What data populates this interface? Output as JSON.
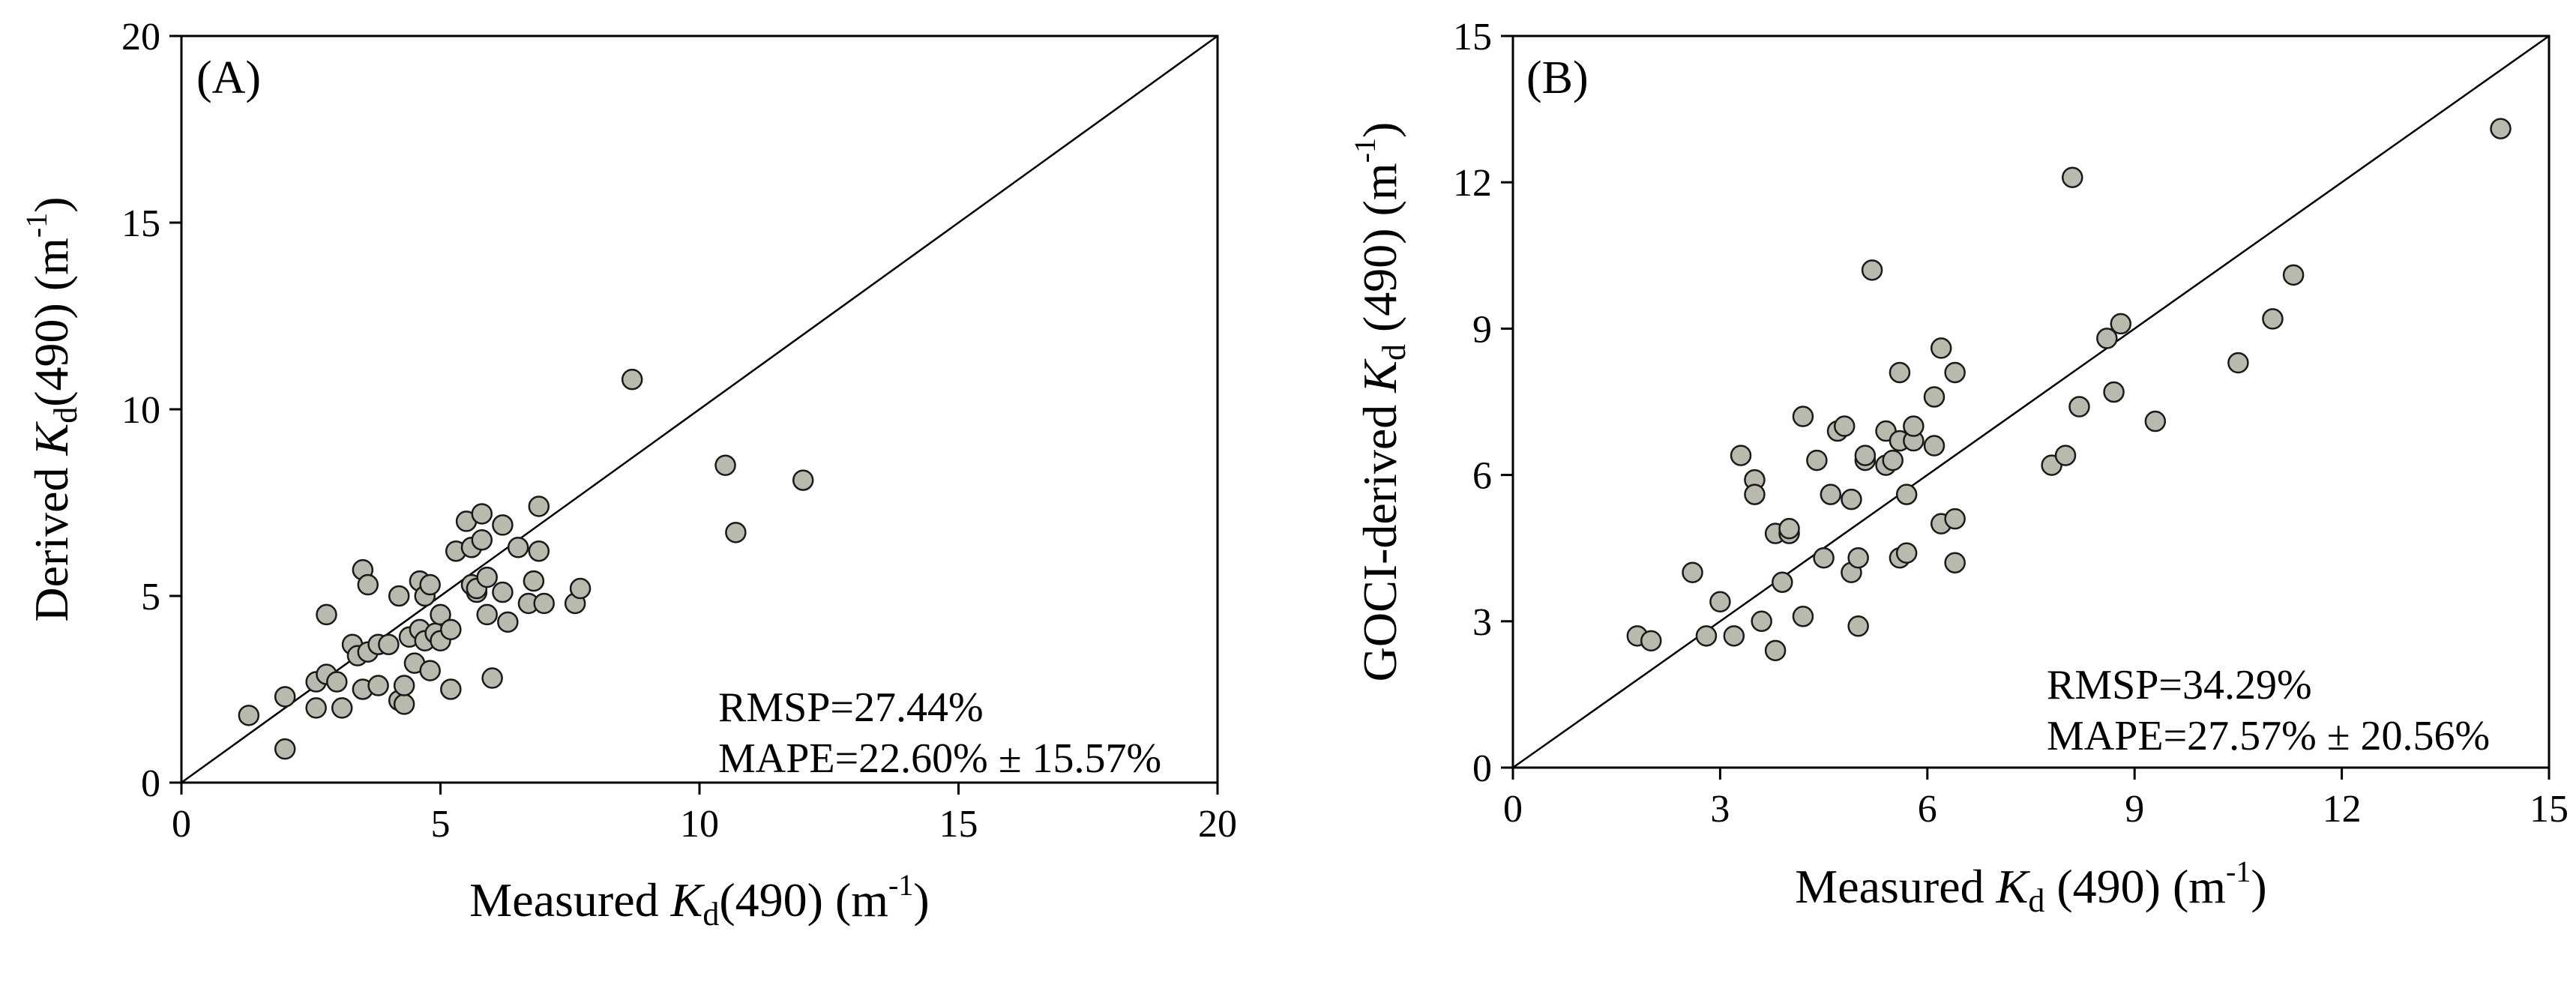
{
  "chart_data": [
    {
      "type": "scatter",
      "panel_label": "(A)",
      "xlabel": {
        "prefix": "Measured ",
        "var": "K",
        "sub": "d",
        "suffix": "(490) (m",
        "sup": "-1",
        "close": ")"
      },
      "ylabel": {
        "prefix": "Derived ",
        "var": "K",
        "sub": "d",
        "suffix": "(490) (m",
        "sup": "-1",
        "close": ")"
      },
      "xlim": [
        0,
        20
      ],
      "ylim": [
        0,
        20
      ],
      "xticks": [
        "0",
        "5",
        "10",
        "15",
        "20"
      ],
      "yticks": [
        "0",
        "5",
        "10",
        "15",
        "20"
      ],
      "tick_values": [
        0,
        5,
        10,
        15,
        20
      ],
      "reference_line": "1:1",
      "annotations": [
        "RMSP=27.44%",
        "MAPE=22.60% ± 15.57%"
      ],
      "points": [
        [
          1.3,
          1.8
        ],
        [
          2.0,
          0.9
        ],
        [
          2.0,
          2.3
        ],
        [
          2.6,
          2.7
        ],
        [
          2.6,
          2.0
        ],
        [
          2.8,
          2.9
        ],
        [
          2.8,
          4.5
        ],
        [
          3.0,
          2.7
        ],
        [
          3.1,
          2.0
        ],
        [
          3.3,
          3.7
        ],
        [
          3.4,
          3.4
        ],
        [
          3.5,
          2.5
        ],
        [
          3.5,
          5.7
        ],
        [
          3.6,
          5.3
        ],
        [
          3.6,
          3.5
        ],
        [
          3.8,
          3.7
        ],
        [
          3.8,
          2.6
        ],
        [
          4.0,
          3.7
        ],
        [
          4.2,
          2.2
        ],
        [
          4.2,
          5.0
        ],
        [
          4.3,
          2.1
        ],
        [
          4.3,
          2.6
        ],
        [
          4.4,
          3.9
        ],
        [
          4.5,
          3.2
        ],
        [
          4.6,
          4.1
        ],
        [
          4.6,
          5.4
        ],
        [
          4.7,
          5.0
        ],
        [
          4.7,
          3.8
        ],
        [
          4.8,
          5.3
        ],
        [
          4.8,
          3.0
        ],
        [
          4.9,
          4.0
        ],
        [
          5.0,
          4.5
        ],
        [
          5.0,
          3.8
        ],
        [
          5.2,
          4.1
        ],
        [
          5.2,
          2.5
        ],
        [
          5.3,
          6.2
        ],
        [
          5.5,
          7.0
        ],
        [
          5.6,
          6.3
        ],
        [
          5.6,
          5.3
        ],
        [
          5.7,
          5.1
        ],
        [
          5.7,
          5.2
        ],
        [
          5.8,
          7.2
        ],
        [
          5.8,
          6.5
        ],
        [
          5.9,
          4.5
        ],
        [
          5.9,
          5.5
        ],
        [
          6.0,
          2.8
        ],
        [
          6.2,
          6.9
        ],
        [
          6.2,
          5.1
        ],
        [
          6.3,
          4.3
        ],
        [
          6.5,
          6.3
        ],
        [
          6.7,
          4.8
        ],
        [
          6.8,
          5.4
        ],
        [
          6.9,
          7.4
        ],
        [
          6.9,
          6.2
        ],
        [
          7.0,
          4.8
        ],
        [
          7.6,
          4.8
        ],
        [
          7.7,
          5.2
        ],
        [
          8.7,
          10.8
        ],
        [
          10.5,
          8.5
        ],
        [
          10.7,
          6.7
        ],
        [
          12.0,
          8.1
        ]
      ]
    },
    {
      "type": "scatter",
      "panel_label": "(B)",
      "xlabel": {
        "prefix": "Measured ",
        "var": "K",
        "sub": "d",
        "suffix": " (490) (m",
        "sup": "-1",
        "close": ")"
      },
      "ylabel": {
        "prefix": "GOCI-derived ",
        "var": "K",
        "sub": "d",
        "suffix": " (490) (m",
        "sup": "-1",
        "close": ")"
      },
      "xlim": [
        0,
        15
      ],
      "ylim": [
        0,
        15
      ],
      "xticks": [
        "0",
        "3",
        "6",
        "9",
        "12",
        "15"
      ],
      "yticks": [
        "0",
        "3",
        "6",
        "9",
        "12",
        "15"
      ],
      "tick_values": [
        0,
        3,
        6,
        9,
        12,
        15
      ],
      "reference_line": "1:1",
      "annotations": [
        "RMSP=34.29%",
        "MAPE=27.57% ± 20.56%"
      ],
      "points": [
        [
          1.8,
          2.7
        ],
        [
          2.0,
          2.6
        ],
        [
          2.6,
          4.0
        ],
        [
          2.8,
          2.7
        ],
        [
          3.0,
          3.4
        ],
        [
          3.2,
          2.7
        ],
        [
          3.3,
          6.4
        ],
        [
          3.5,
          5.9
        ],
        [
          3.5,
          5.6
        ],
        [
          3.6,
          3.0
        ],
        [
          3.8,
          2.4
        ],
        [
          3.8,
          4.8
        ],
        [
          3.9,
          3.8
        ],
        [
          4.0,
          4.8
        ],
        [
          4.0,
          4.9
        ],
        [
          4.2,
          7.2
        ],
        [
          4.2,
          3.1
        ],
        [
          4.4,
          6.3
        ],
        [
          4.5,
          4.3
        ],
        [
          4.6,
          5.6
        ],
        [
          4.7,
          6.9
        ],
        [
          4.8,
          7.0
        ],
        [
          4.9,
          5.5
        ],
        [
          4.9,
          4.0
        ],
        [
          5.0,
          2.9
        ],
        [
          5.0,
          4.3
        ],
        [
          5.1,
          6.3
        ],
        [
          5.1,
          6.4
        ],
        [
          5.2,
          10.2
        ],
        [
          5.4,
          6.9
        ],
        [
          5.4,
          6.2
        ],
        [
          5.5,
          6.3
        ],
        [
          5.6,
          8.1
        ],
        [
          5.6,
          6.7
        ],
        [
          5.6,
          4.3
        ],
        [
          5.7,
          5.6
        ],
        [
          5.7,
          4.4
        ],
        [
          5.8,
          6.7
        ],
        [
          5.8,
          7.0
        ],
        [
          6.1,
          7.6
        ],
        [
          6.1,
          6.6
        ],
        [
          6.2,
          5.0
        ],
        [
          6.2,
          8.6
        ],
        [
          6.4,
          8.1
        ],
        [
          6.4,
          5.1
        ],
        [
          6.4,
          4.2
        ],
        [
          7.8,
          6.2
        ],
        [
          8.0,
          6.4
        ],
        [
          8.1,
          12.1
        ],
        [
          8.2,
          7.4
        ],
        [
          8.6,
          8.8
        ],
        [
          8.7,
          7.7
        ],
        [
          8.8,
          9.1
        ],
        [
          9.3,
          7.1
        ],
        [
          10.5,
          8.3
        ],
        [
          11.0,
          9.2
        ],
        [
          11.3,
          10.1
        ],
        [
          14.3,
          13.1
        ]
      ]
    }
  ]
}
